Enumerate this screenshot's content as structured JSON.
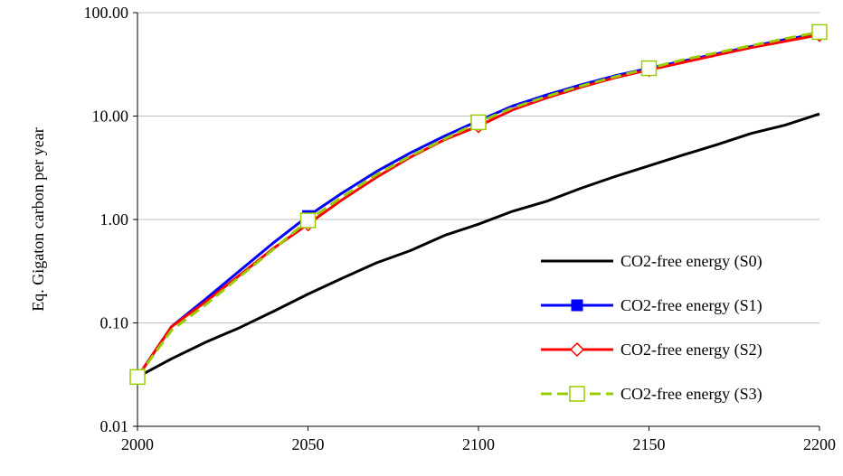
{
  "chart_data": {
    "type": "line",
    "title": "",
    "xlabel": "",
    "ylabel": "Eq. Gigaton carbon per year",
    "y_scale": "log",
    "xlim": [
      2000,
      2200
    ],
    "ylim": [
      0.01,
      100
    ],
    "x_ticks": [
      "2000",
      "2050",
      "2100",
      "2150",
      "2200"
    ],
    "y_ticks": [
      "0.01",
      "0.10",
      "1.00",
      "10.00",
      "100.00"
    ],
    "grid": "horizontal",
    "legend_position": "bottom-right",
    "x": [
      2000,
      2010,
      2020,
      2030,
      2040,
      2050,
      2060,
      2070,
      2080,
      2090,
      2100,
      2110,
      2120,
      2130,
      2140,
      2150,
      2160,
      2170,
      2180,
      2190,
      2200
    ],
    "series": [
      {
        "name": "CO2-free energy (S0)",
        "color": "#000000",
        "marker": "none",
        "dashed": false,
        "values": [
          0.03,
          0.045,
          0.065,
          0.09,
          0.13,
          0.19,
          0.27,
          0.38,
          0.5,
          0.7,
          0.9,
          1.2,
          1.5,
          2.0,
          2.6,
          3.3,
          4.2,
          5.3,
          6.8,
          8.2,
          10.5
        ]
      },
      {
        "name": "CO2-free energy (S1)",
        "color": "#0000ff",
        "marker": "filled-square",
        "dashed": false,
        "values": [
          0.03,
          0.092,
          0.17,
          0.32,
          0.6,
          1.08,
          1.8,
          2.9,
          4.4,
          6.4,
          9.0,
          12.5,
          16.0,
          20.0,
          24.5,
          29.0,
          34.0,
          40.0,
          47.0,
          55.0,
          63.0
        ]
      },
      {
        "name": "CO2-free energy (S2)",
        "color": "#ff0000",
        "marker": "open-diamond",
        "dashed": false,
        "values": [
          0.03,
          0.092,
          0.16,
          0.29,
          0.53,
          0.9,
          1.55,
          2.55,
          4.0,
          5.9,
          8.0,
          11.5,
          15.0,
          19.0,
          23.5,
          28.0,
          33.0,
          39.0,
          46.0,
          53.0,
          61.0
        ]
      },
      {
        "name": "CO2-free energy (S3)",
        "color": "#99cc00",
        "marker": "open-square",
        "dashed": true,
        "values": [
          0.03,
          0.085,
          0.15,
          0.28,
          0.52,
          0.98,
          1.65,
          2.7,
          4.1,
          6.0,
          8.7,
          12.0,
          15.5,
          19.5,
          24.0,
          29.0,
          35.0,
          41.0,
          48.0,
          56.0,
          65.0
        ]
      }
    ]
  }
}
